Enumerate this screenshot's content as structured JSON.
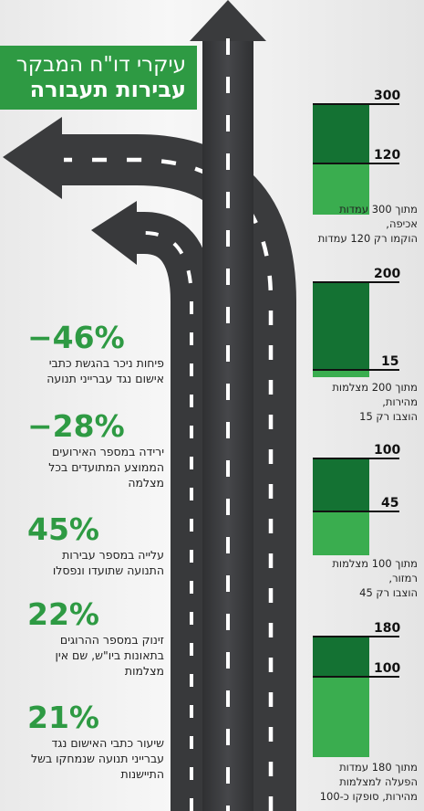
{
  "title": {
    "line1": "עיקרי דו\"ח המבקר",
    "line2": "עבירות תעבורה"
  },
  "stats": [
    {
      "value": "−46%",
      "text": "פיחות ניכר בהגשת כתבי אישום נגד עברייני תנועה"
    },
    {
      "value": "−28%",
      "text": "ירידה במספר האירועים הממוצע המתועדים בכל מצלמה"
    },
    {
      "value": "45%",
      "text": "עלייה במספר עבירות התנועה שתועדו ונפסלו"
    },
    {
      "value": "22%",
      "text": "זינוק במספר ההרוגים בתאונות ביו\"ש, שם אין מצלמות"
    },
    {
      "value": "21%",
      "text": "שיעור כתבי האישום נגד עברייני תנועה שנמחקו בשל התיישנות"
    }
  ],
  "bars": [
    {
      "total": 300,
      "actual": 120,
      "total_label": "300",
      "actual_label": "120",
      "caption": [
        "מתוך 300 עמדות",
        "אכיפה,",
        "הוקמו רק 120 עמדות"
      ]
    },
    {
      "total": 200,
      "actual": 15,
      "total_label": "200",
      "actual_label": "15",
      "caption": [
        "מתוך 200 מצלמות",
        "מהירות,",
        "הוצבו רק 15"
      ]
    },
    {
      "total": 100,
      "actual": 45,
      "total_label": "100",
      "actual_label": "45",
      "caption": [
        "מתוך 100 מצלמות",
        "רמזור,",
        "הוצבו רק 45"
      ]
    },
    {
      "total": 180,
      "actual": 100,
      "total_label": "180",
      "actual_label": "100",
      "caption": [
        "מתוך 180 עמדות",
        "הפעלה למצלמות",
        "מהירות, סופקו כ-100"
      ]
    }
  ],
  "colors": {
    "green_title": "#2e9a43",
    "green_dark": "#147233",
    "green_light": "#3aad4f",
    "road": "#3c3d3f",
    "lane_marking": "#ffffff"
  }
}
